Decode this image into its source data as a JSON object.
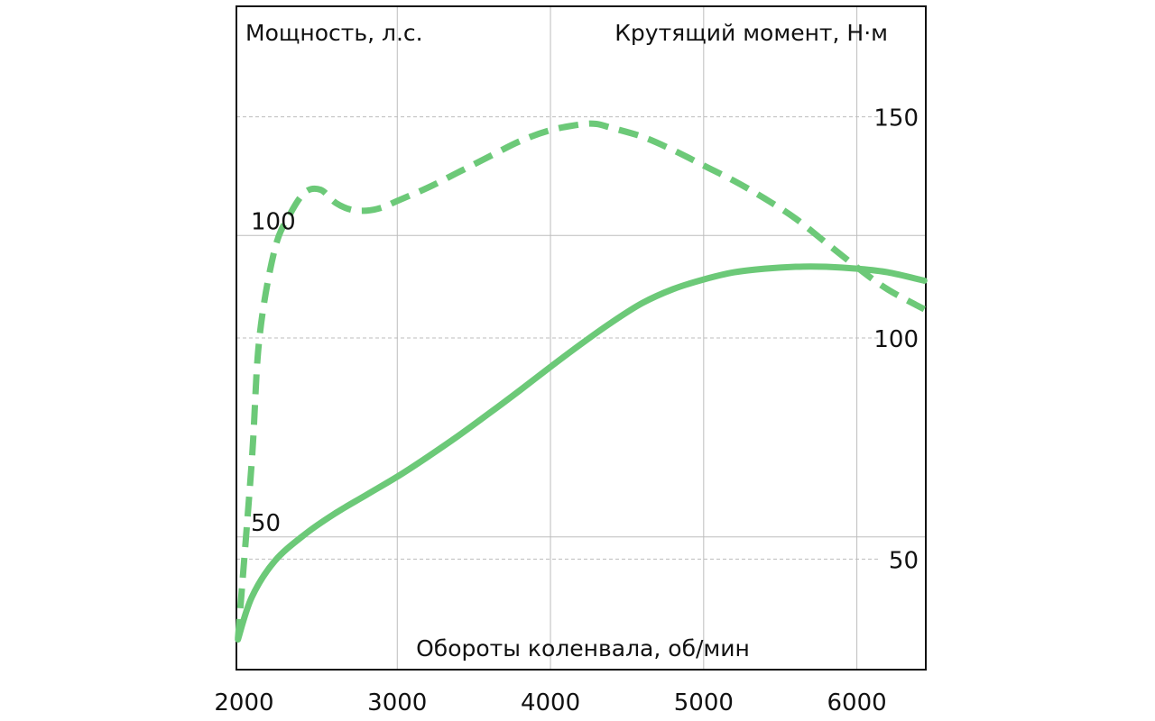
{
  "chart_data": {
    "type": "line",
    "xlabel": "Обороты коленвала, об/мин",
    "ylabel_left": "Мощность, л.с.",
    "ylabel_right": "Крутящий момент, Н·м",
    "xlim": [
      1950,
      6450
    ],
    "ylim_left": [
      28,
      138
    ],
    "ylim_right": [
      25,
      175
    ],
    "x_ticks": [
      "2000",
      "3000",
      "4000",
      "5000",
      "6000"
    ],
    "y_left_ticks": [
      "50",
      "100"
    ],
    "y_right_ticks": [
      "50",
      "100",
      "150"
    ],
    "grid": true,
    "series": [
      {
        "axis": "left",
        "style": "solid",
        "color": "#6cc978",
        "x": [
          1960,
          2050,
          2200,
          2400,
          2600,
          2800,
          3000,
          3200,
          3400,
          3600,
          3800,
          4000,
          4200,
          4400,
          4600,
          4800,
          5000,
          5200,
          5400,
          5600,
          5800,
          6000,
          6200,
          6440
        ],
        "values": [
          33,
          40,
          46,
          50.5,
          54,
          57,
          60,
          63.3,
          66.8,
          70.5,
          74.3,
          78.2,
          82,
          85.6,
          88.8,
          91.1,
          92.7,
          93.9,
          94.5,
          94.8,
          94.8,
          94.5,
          93.9,
          92.5
        ]
      },
      {
        "axis": "right",
        "style": "dashed",
        "color": "#6cc978",
        "x": [
          1960,
          2050,
          2100,
          2200,
          2300,
          2400,
          2500,
          2600,
          2700,
          2800,
          2900,
          3000,
          3200,
          3400,
          3600,
          3800,
          4000,
          4200,
          4300,
          4400,
          4600,
          4800,
          5000,
          5200,
          5400,
          5600,
          5800,
          6000,
          6200,
          6440
        ],
        "values": [
          32,
          72,
          100,
          120,
          128,
          133,
          133.5,
          130.5,
          129,
          128.8,
          129.5,
          131,
          134,
          137.5,
          141,
          144.5,
          147,
          148.3,
          148.4,
          147.5,
          145.5,
          142.5,
          139,
          135.5,
          131.5,
          127,
          121.5,
          116,
          111,
          106.5
        ]
      }
    ]
  }
}
